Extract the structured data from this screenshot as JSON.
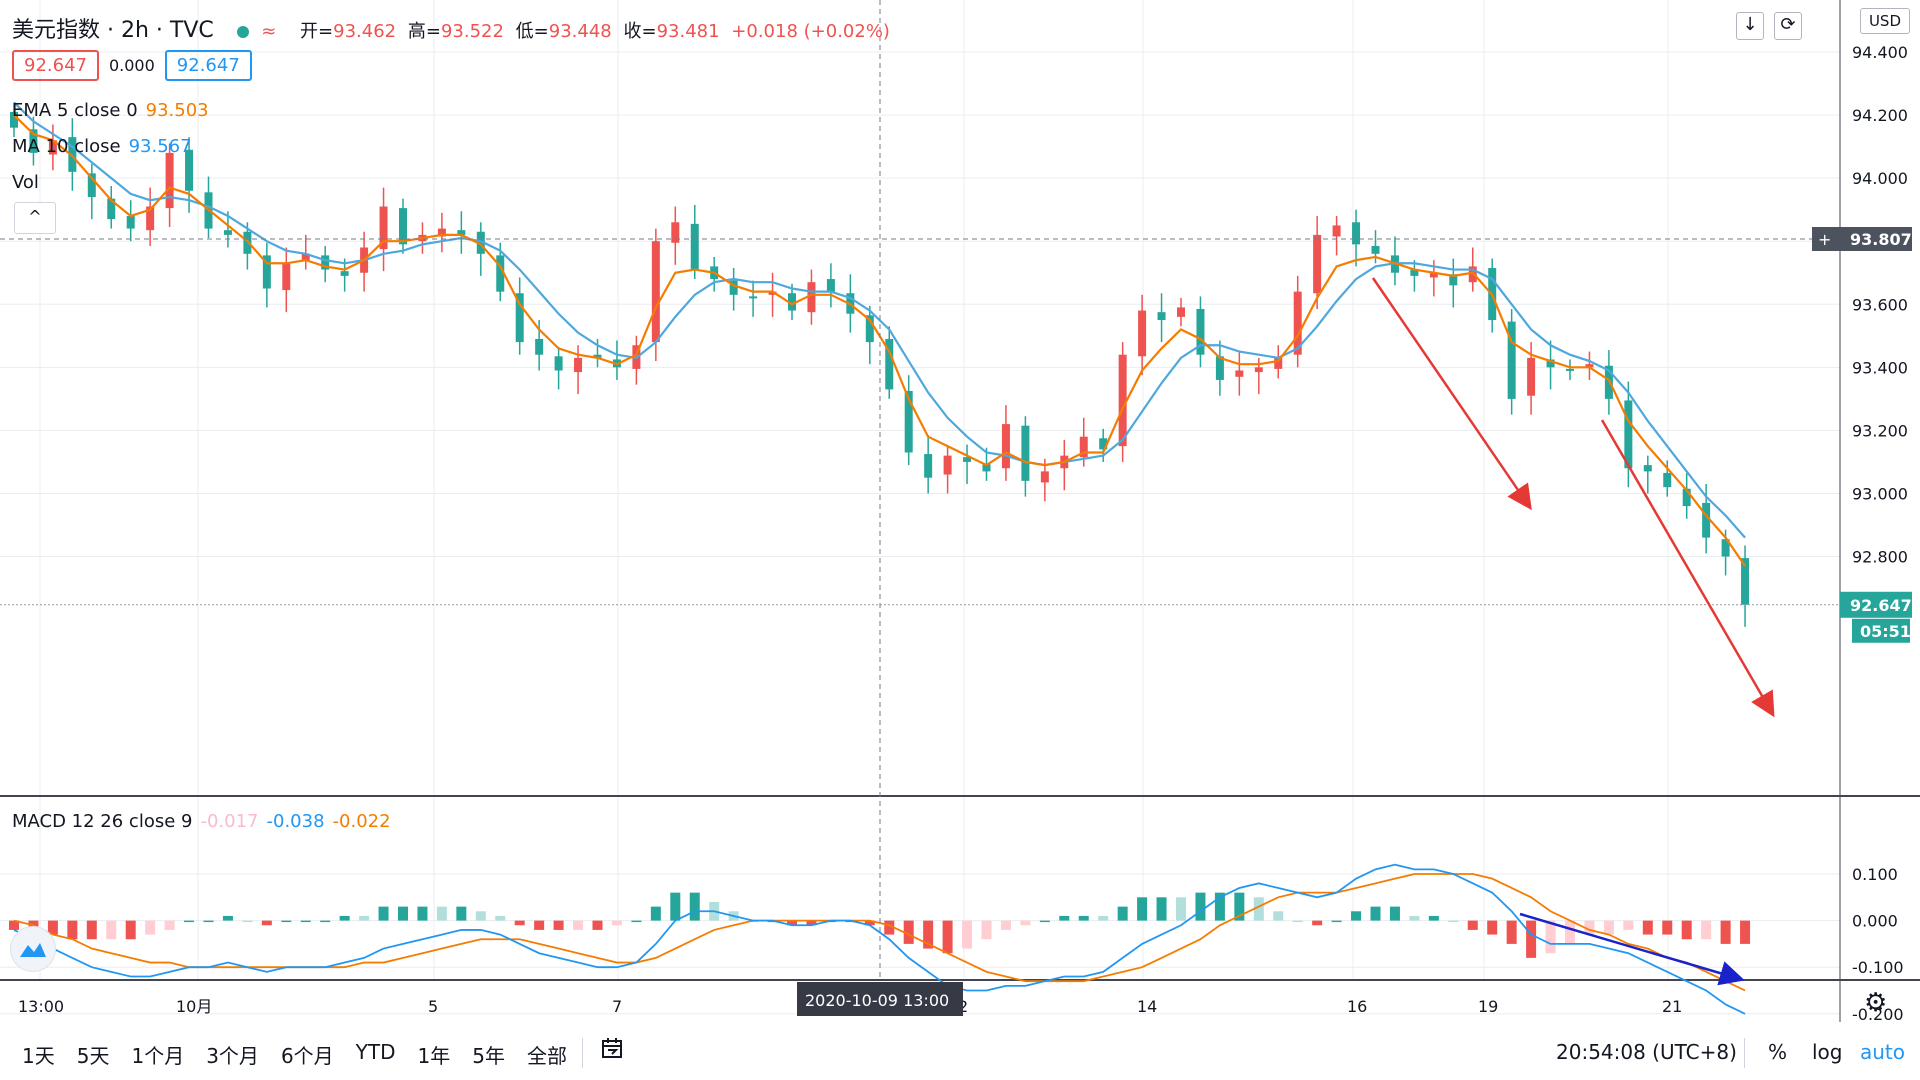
{
  "header": {
    "symbol": "美元指数 · 2h · TVC",
    "approx": "≈",
    "open_label": "开=",
    "open": "93.462",
    "high_label": "高=",
    "high": "93.522",
    "low_label": "低=",
    "low": "93.448",
    "close_label": "收=",
    "close": "93.481",
    "change": "+0.018 (+0.02%)"
  },
  "badges": {
    "bid": "92.647",
    "spread": "0.000",
    "ask": "92.647"
  },
  "indicators": {
    "ema_label": "EMA 5 close 0",
    "ema_value": "93.503",
    "ma_label": "MA 10 close",
    "ma_value": "93.567",
    "vol_label": "Vol",
    "collapse": "^"
  },
  "top_right": {
    "download_icon": "↓",
    "fullscreen_icon": "⟳",
    "currency": "USD"
  },
  "macd_legend": {
    "label": "MACD 12 26 close 9",
    "hist": "-0.017",
    "macd": "-0.038",
    "signal": "-0.022"
  },
  "bottom_bar": {
    "ranges": [
      "1天",
      "5天",
      "1个月",
      "3个月",
      "6个月",
      "YTD",
      "1年",
      "5年",
      "全部"
    ],
    "calendar_icon": "calendar-icon",
    "clock": "20:54:08 (UTC+8)",
    "percent": "%",
    "log": "log",
    "auto": "auto"
  },
  "colors": {
    "up": "#26a69a",
    "down": "#ef5350",
    "ema": "#f57c00",
    "ma": "#4ea8de",
    "macd": "#2196f3",
    "signal": "#f57c00",
    "grid": "#e9edf1"
  },
  "chart_data": [
    {
      "type": "candlestick",
      "title": "美元指数 · 2h · TVC",
      "ylim": [
        92.58,
        94.45
      ],
      "y_ticks": [
        "94.400",
        "94.200",
        "94.000",
        "93.800",
        "93.600",
        "93.400",
        "93.200",
        "93.000",
        "92.800"
      ],
      "x_ticks": [
        "13:00",
        "10月",
        "5",
        "7",
        "2",
        "14",
        "16",
        "19",
        "21"
      ],
      "crosshair_x_label": "2020-10-09  13:00",
      "crosshair_price_label": "93.807",
      "last_price_label": "92.647",
      "countdown_label": "05:51",
      "annotations": [
        "red-arrow-1",
        "red-arrow-2",
        "blue-arrow"
      ],
      "closes": [
        94.16,
        94.08,
        94.12,
        94.02,
        93.94,
        93.87,
        93.84,
        93.91,
        94.08,
        93.96,
        93.84,
        93.82,
        93.76,
        93.65,
        93.73,
        93.76,
        93.71,
        93.69,
        93.78,
        93.91,
        93.79,
        93.82,
        93.84,
        93.82,
        93.76,
        93.64,
        93.48,
        93.44,
        93.39,
        93.43,
        93.43,
        93.4,
        93.47,
        93.8,
        93.86,
        93.71,
        93.68,
        93.63,
        93.62,
        93.64,
        93.58,
        93.67,
        93.64,
        93.57,
        93.48,
        93.33,
        93.13,
        93.05,
        93.12,
        93.1,
        93.07,
        93.22,
        93.04,
        93.07,
        93.12,
        93.18,
        93.14,
        93.44,
        93.58,
        93.55,
        93.59,
        93.44,
        93.36,
        93.39,
        93.4,
        93.43,
        93.64,
        93.82,
        93.85,
        93.79,
        93.76,
        93.7,
        93.69,
        93.7,
        93.66,
        93.72,
        93.55,
        93.3,
        93.43,
        93.4,
        93.39,
        93.41,
        93.3,
        93.08,
        93.07,
        93.02,
        92.96,
        92.86,
        92.8,
        92.647
      ],
      "ema5": [
        94.2,
        94.14,
        94.12,
        94.07,
        94.0,
        93.93,
        93.88,
        93.9,
        93.97,
        93.95,
        93.9,
        93.85,
        93.8,
        93.73,
        93.73,
        93.74,
        93.72,
        93.71,
        93.74,
        93.8,
        93.8,
        93.81,
        93.82,
        93.82,
        93.79,
        93.72,
        93.6,
        93.52,
        93.46,
        93.44,
        93.43,
        93.41,
        93.44,
        93.59,
        93.7,
        93.71,
        93.7,
        93.66,
        93.64,
        93.64,
        93.6,
        93.63,
        93.63,
        93.6,
        93.55,
        93.45,
        93.3,
        93.18,
        93.15,
        93.12,
        93.09,
        93.13,
        93.1,
        93.09,
        93.1,
        93.13,
        93.13,
        93.27,
        93.39,
        93.46,
        93.52,
        93.49,
        93.43,
        93.41,
        93.41,
        93.42,
        93.5,
        93.62,
        93.72,
        93.74,
        93.75,
        93.73,
        93.71,
        93.7,
        93.69,
        93.7,
        93.63,
        93.48,
        93.44,
        93.42,
        93.4,
        93.4,
        93.36,
        93.23,
        93.15,
        93.08,
        93.01,
        92.93,
        92.86,
        92.77
      ],
      "ma10": [
        94.24,
        94.18,
        94.14,
        94.1,
        94.05,
        94.0,
        93.95,
        93.93,
        93.94,
        93.93,
        93.91,
        93.88,
        93.84,
        93.8,
        93.77,
        93.76,
        93.74,
        93.73,
        93.74,
        93.76,
        93.77,
        93.79,
        93.8,
        93.81,
        93.8,
        93.77,
        93.71,
        93.64,
        93.57,
        93.51,
        93.47,
        93.44,
        93.43,
        93.48,
        93.56,
        93.63,
        93.67,
        93.68,
        93.67,
        93.67,
        93.65,
        93.64,
        93.64,
        93.62,
        93.58,
        93.52,
        93.42,
        93.32,
        93.24,
        93.18,
        93.13,
        93.12,
        93.1,
        93.09,
        93.1,
        93.11,
        93.12,
        93.17,
        93.26,
        93.35,
        93.43,
        93.47,
        93.47,
        93.45,
        93.44,
        93.43,
        93.46,
        93.53,
        93.61,
        93.68,
        93.72,
        93.73,
        93.73,
        93.72,
        93.71,
        93.71,
        93.68,
        93.6,
        93.52,
        93.47,
        93.44,
        93.42,
        93.39,
        93.32,
        93.23,
        93.15,
        93.07,
        92.99,
        92.93,
        92.86
      ]
    },
    {
      "type": "macd",
      "title": "MACD 12 26 close 9",
      "ylim": [
        -0.225,
        0.135
      ],
      "y_ticks": [
        "0.100",
        "0.000",
        "-0.100",
        "-0.200"
      ],
      "macd": [
        -0.02,
        -0.04,
        -0.06,
        -0.08,
        -0.1,
        -0.11,
        -0.12,
        -0.12,
        -0.11,
        -0.1,
        -0.1,
        -0.09,
        -0.1,
        -0.11,
        -0.1,
        -0.1,
        -0.1,
        -0.09,
        -0.08,
        -0.06,
        -0.05,
        -0.04,
        -0.03,
        -0.02,
        -0.02,
        -0.03,
        -0.05,
        -0.07,
        -0.08,
        -0.09,
        -0.1,
        -0.1,
        -0.09,
        -0.05,
        0.0,
        0.02,
        0.02,
        0.01,
        0.0,
        0.0,
        -0.01,
        -0.01,
        0.0,
        0.0,
        -0.01,
        -0.04,
        -0.08,
        -0.11,
        -0.14,
        -0.15,
        -0.15,
        -0.14,
        -0.14,
        -0.13,
        -0.12,
        -0.12,
        -0.11,
        -0.08,
        -0.05,
        -0.03,
        -0.01,
        0.02,
        0.05,
        0.07,
        0.08,
        0.07,
        0.06,
        0.05,
        0.06,
        0.09,
        0.11,
        0.12,
        0.11,
        0.11,
        0.1,
        0.08,
        0.06,
        0.02,
        -0.03,
        -0.05,
        -0.05,
        -0.05,
        -0.06,
        -0.07,
        -0.09,
        -0.11,
        -0.13,
        -0.15,
        -0.18,
        -0.2
      ],
      "signal": [
        0.0,
        -0.01,
        -0.03,
        -0.04,
        -0.06,
        -0.07,
        -0.08,
        -0.09,
        -0.09,
        -0.1,
        -0.1,
        -0.1,
        -0.1,
        -0.1,
        -0.1,
        -0.1,
        -0.1,
        -0.1,
        -0.09,
        -0.09,
        -0.08,
        -0.07,
        -0.06,
        -0.05,
        -0.04,
        -0.04,
        -0.04,
        -0.05,
        -0.06,
        -0.07,
        -0.08,
        -0.09,
        -0.09,
        -0.08,
        -0.06,
        -0.04,
        -0.02,
        -0.01,
        0.0,
        0.0,
        0.0,
        0.0,
        0.0,
        0.0,
        0.0,
        -0.01,
        -0.03,
        -0.05,
        -0.07,
        -0.09,
        -0.11,
        -0.12,
        -0.13,
        -0.13,
        -0.13,
        -0.13,
        -0.12,
        -0.11,
        -0.1,
        -0.08,
        -0.06,
        -0.04,
        -0.01,
        0.01,
        0.03,
        0.05,
        0.06,
        0.06,
        0.06,
        0.07,
        0.08,
        0.09,
        0.1,
        0.1,
        0.1,
        0.1,
        0.09,
        0.07,
        0.05,
        0.02,
        0.0,
        -0.02,
        -0.03,
        -0.05,
        -0.06,
        -0.08,
        -0.09,
        -0.11,
        -0.13,
        -0.15
      ]
    }
  ]
}
